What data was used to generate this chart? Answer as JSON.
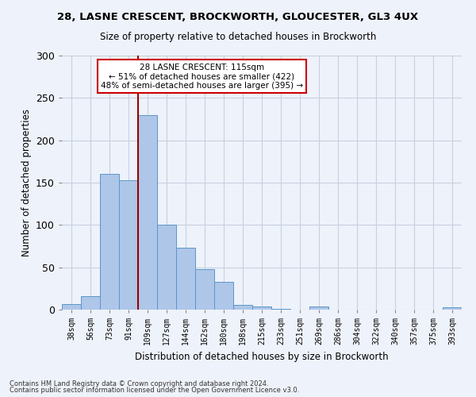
{
  "title": "28, LASNE CRESCENT, BROCKWORTH, GLOUCESTER, GL3 4UX",
  "subtitle": "Size of property relative to detached houses in Brockworth",
  "xlabel": "Distribution of detached houses by size in Brockworth",
  "ylabel": "Number of detached properties",
  "categories": [
    "38sqm",
    "56sqm",
    "73sqm",
    "91sqm",
    "109sqm",
    "127sqm",
    "144sqm",
    "162sqm",
    "180sqm",
    "198sqm",
    "215sqm",
    "233sqm",
    "251sqm",
    "269sqm",
    "286sqm",
    "304sqm",
    "322sqm",
    "340sqm",
    "357sqm",
    "375sqm",
    "393sqm"
  ],
  "values": [
    7,
    16,
    160,
    153,
    230,
    100,
    73,
    48,
    33,
    6,
    4,
    1,
    0,
    4,
    0,
    0,
    0,
    0,
    0,
    0,
    3
  ],
  "bar_color": "#aec6e8",
  "bar_edgecolor": "#5a96c8",
  "vline_index": 3.5,
  "annotation_text": "28 LASNE CRESCENT: 115sqm\n← 51% of detached houses are smaller (422)\n48% of semi-detached houses are larger (395) →",
  "annotation_box_color": "#ffffff",
  "annotation_box_edgecolor": "#cc0000",
  "vline_color": "#990000",
  "ylim": [
    0,
    300
  ],
  "yticks": [
    0,
    50,
    100,
    150,
    200,
    250,
    300
  ],
  "grid_color": "#c8d0e0",
  "background_color": "#eef2fa",
  "footer_line1": "Contains HM Land Registry data © Crown copyright and database right 2024.",
  "footer_line2": "Contains public sector information licensed under the Open Government Licence v3.0."
}
